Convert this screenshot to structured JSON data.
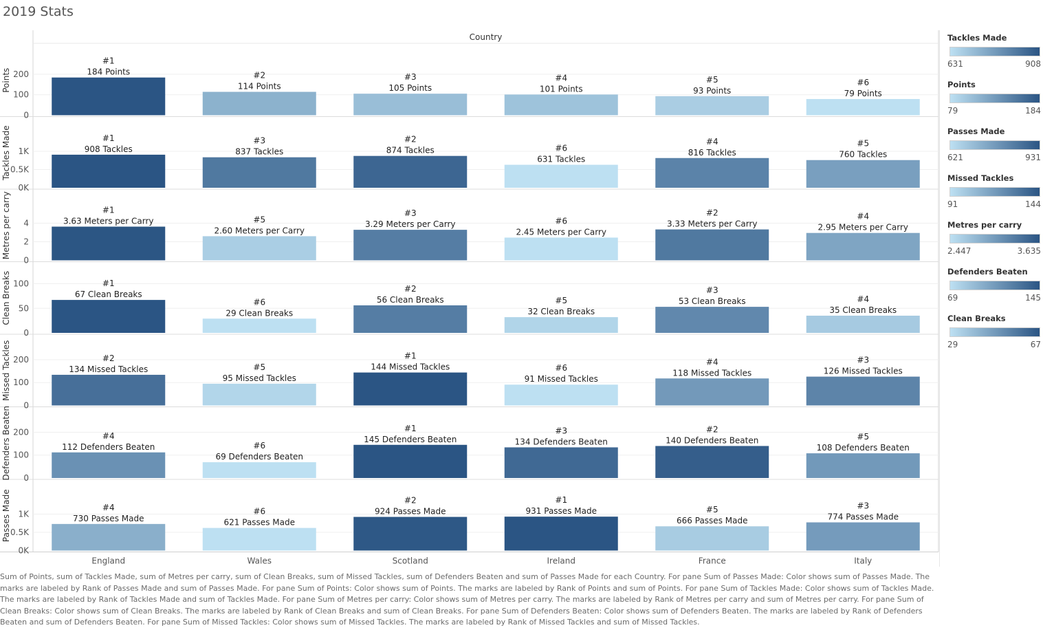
{
  "title": "2019 Stats",
  "colors": {
    "light": "#bde0f2",
    "dark": "#2b5584"
  },
  "chart_data": {
    "type": "bar",
    "column_header": "Country",
    "categories": [
      "England",
      "Wales",
      "Scotland",
      "Ireland",
      "France",
      "Italy"
    ],
    "rows": [
      {
        "ylabel": "Points",
        "suffix": "Points",
        "ylim": [
          0,
          240
        ],
        "ticks": [
          {
            "v": 0,
            "t": "0"
          },
          {
            "v": 100,
            "t": "100"
          },
          {
            "v": 200,
            "t": "200"
          }
        ],
        "values": [
          184,
          114,
          105,
          101,
          93,
          79
        ],
        "labels": [
          "184",
          "114",
          "105",
          "101",
          "93",
          "79"
        ],
        "ranks": [
          "#1",
          "#2",
          "#3",
          "#4",
          "#5",
          "#6"
        ],
        "color_range": [
          79,
          184
        ]
      },
      {
        "ylabel": "Tackles Made",
        "suffix": "Tackles",
        "ylim": [
          0,
          1350
        ],
        "ticks": [
          {
            "v": 0,
            "t": "0K"
          },
          {
            "v": 500,
            "t": "0.5K"
          },
          {
            "v": 1000,
            "t": "1K"
          }
        ],
        "values": [
          908,
          837,
          874,
          631,
          816,
          760
        ],
        "labels": [
          "908",
          "837",
          "874",
          "631",
          "816",
          "760"
        ],
        "ranks": [
          "#1",
          "#3",
          "#2",
          "#6",
          "#4",
          "#5"
        ],
        "color_range": [
          631,
          908
        ]
      },
      {
        "ylabel": "Metres per carry",
        "suffix": "Meters per Carry",
        "ylim": [
          0,
          5.3
        ],
        "ticks": [
          {
            "v": 0,
            "t": "0"
          },
          {
            "v": 2,
            "t": "2"
          },
          {
            "v": 4,
            "t": "4"
          }
        ],
        "values": [
          3.63,
          2.6,
          3.29,
          2.45,
          3.33,
          2.95
        ],
        "labels": [
          "3.63",
          "2.60",
          "3.29",
          "2.45",
          "3.33",
          "2.95"
        ],
        "ranks": [
          "#1",
          "#5",
          "#3",
          "#6",
          "#2",
          "#4"
        ],
        "color_range": [
          2.447,
          3.635
        ]
      },
      {
        "ylabel": "Clean Breaks",
        "suffix": "Clean Breaks",
        "ylim": [
          0,
          100
        ],
        "ticks": [
          {
            "v": 0,
            "t": "0"
          },
          {
            "v": 50,
            "t": "50"
          },
          {
            "v": 100,
            "t": "100"
          }
        ],
        "values": [
          67,
          29,
          56,
          32,
          53,
          35
        ],
        "labels": [
          "67",
          "29",
          "56",
          "32",
          "53",
          "35"
        ],
        "ranks": [
          "#1",
          "#6",
          "#2",
          "#5",
          "#3",
          "#4"
        ],
        "color_range": [
          29,
          67
        ]
      },
      {
        "ylabel": "Missed Tackles",
        "suffix": "Missed Tackles",
        "ylim": [
          0,
          215
        ],
        "ticks": [
          {
            "v": 0,
            "t": "0"
          },
          {
            "v": 100,
            "t": "100"
          },
          {
            "v": 200,
            "t": "200"
          }
        ],
        "values": [
          134,
          95,
          144,
          91,
          118,
          126
        ],
        "labels": [
          "134",
          "95",
          "144",
          "91",
          "118",
          "126"
        ],
        "ranks": [
          "#2",
          "#5",
          "#1",
          "#6",
          "#4",
          "#3"
        ],
        "color_range": [
          91,
          144
        ]
      },
      {
        "ylabel": "Defenders Beaten",
        "suffix": "Defenders Beaten",
        "ylim": [
          0,
          215
        ],
        "ticks": [
          {
            "v": 0,
            "t": "0"
          },
          {
            "v": 100,
            "t": "100"
          },
          {
            "v": 200,
            "t": "200"
          }
        ],
        "values": [
          112,
          69,
          145,
          134,
          140,
          108
        ],
        "labels": [
          "112",
          "69",
          "145",
          "134",
          "140",
          "108"
        ],
        "ranks": [
          "#4",
          "#6",
          "#1",
          "#3",
          "#2",
          "#5"
        ],
        "color_range": [
          69,
          145
        ]
      },
      {
        "ylabel": "Passes Made",
        "suffix": "Passes Made",
        "ylim": [
          0,
          1350
        ],
        "ticks": [
          {
            "v": 0,
            "t": "0K"
          },
          {
            "v": 500,
            "t": "0.5K"
          },
          {
            "v": 1000,
            "t": "1K"
          }
        ],
        "values": [
          730,
          621,
          924,
          931,
          666,
          774
        ],
        "labels": [
          "730",
          "621",
          "924",
          "931",
          "666",
          "774"
        ],
        "ranks": [
          "#4",
          "#6",
          "#2",
          "#1",
          "#5",
          "#3"
        ],
        "color_range": [
          621,
          931
        ]
      }
    ]
  },
  "legends": [
    {
      "title": "Tackles Made",
      "min": "631",
      "max": "908"
    },
    {
      "title": "Points",
      "min": "79",
      "max": "184"
    },
    {
      "title": "Passes Made",
      "min": "621",
      "max": "931"
    },
    {
      "title": "Missed Tackles",
      "min": "91",
      "max": "144"
    },
    {
      "title": "Metres per carry",
      "min": "2.447",
      "max": "3.635"
    },
    {
      "title": "Defenders Beaten",
      "min": "69",
      "max": "145"
    },
    {
      "title": "Clean Breaks",
      "min": "29",
      "max": "67"
    }
  ],
  "caption": "Sum of Points, sum of Tackles Made, sum of Metres per carry, sum of Clean Breaks, sum of Missed Tackles, sum of Defenders Beaten and sum of Passes Made for each Country.  For pane Sum of Passes Made:  Color shows sum of Passes Made.  The marks are labeled by Rank of Passes Made and sum of Passes Made.  For pane Sum of Points:  Color shows sum of Points.  The marks are labeled by Rank of Points and sum of Points.  For pane Sum of Tackles Made:  Color shows sum of Tackles Made.  The marks are labeled by Rank of Tackles Made and sum of Tackles Made.  For pane Sum of Metres per carry:  Color shows sum of Metres per carry.  The marks are labeled by Rank of Metres per carry and sum of Metres per carry.  For pane Sum of Clean Breaks:  Color shows sum of Clean Breaks.  The marks are labeled by Rank of Clean Breaks and sum of Clean Breaks.  For pane Sum of Defenders Beaten:  Color shows sum of Defenders Beaten.  The marks are labeled by Rank of Defenders Beaten and sum of Defenders Beaten.  For pane Sum of Missed Tackles:  Color shows sum of Missed Tackles.  The marks are labeled by Rank of Missed Tackles and sum of Missed Tackles."
}
